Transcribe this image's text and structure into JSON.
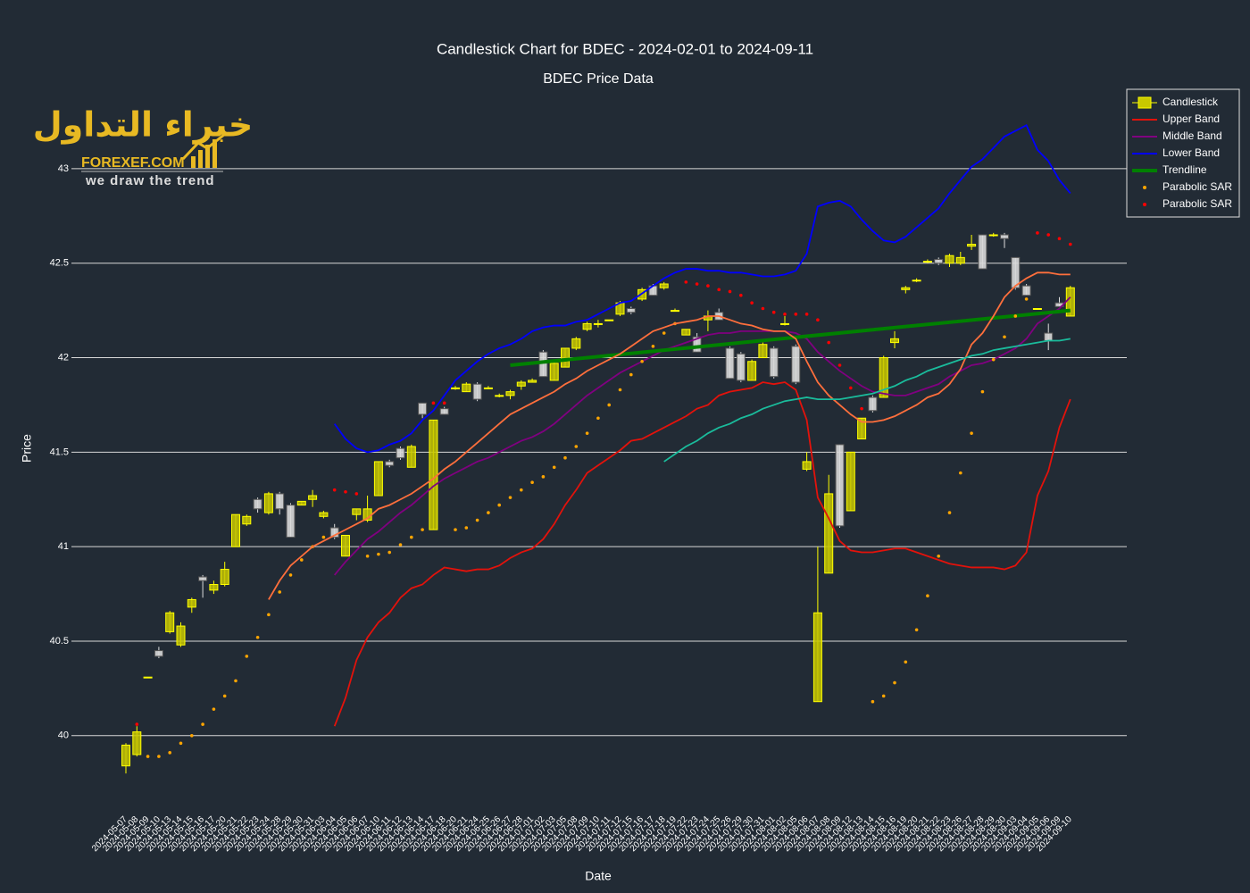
{
  "chart_data": {
    "type": "candlestick",
    "title": "Candlestick Chart for BDEC - 2024-02-01 to 2024-09-11",
    "subtitle": "BDEC Price Data",
    "x_label": "Date",
    "y_label": "Price",
    "candle_name": "Candlestick",
    "increasing_color": "#ffff00",
    "decreasing_color": "#ffffff",
    "ylim": [
      39.64,
      43.42
    ],
    "yticks": [
      40,
      40.5,
      41,
      41.5,
      42,
      42.5,
      43
    ],
    "grid": true,
    "legend": "top-right",
    "categories": [
      "2024-05-07",
      "2024-05-08",
      "2024-05-09",
      "2024-05-10",
      "2024-05-13",
      "2024-05-14",
      "2024-05-15",
      "2024-05-16",
      "2024-05-17",
      "2024-05-20",
      "2024-05-21",
      "2024-05-22",
      "2024-05-23",
      "2024-05-24",
      "2024-05-28",
      "2024-05-29",
      "2024-05-30",
      "2024-05-31",
      "2024-06-03",
      "2024-06-04",
      "2024-06-05",
      "2024-06-06",
      "2024-06-07",
      "2024-06-10",
      "2024-06-11",
      "2024-06-12",
      "2024-06-13",
      "2024-06-14",
      "2024-06-17",
      "2024-06-18",
      "2024-06-20",
      "2024-06-21",
      "2024-06-24",
      "2024-06-25",
      "2024-06-26",
      "2024-06-27",
      "2024-06-28",
      "2024-07-01",
      "2024-07-02",
      "2024-07-03",
      "2024-07-05",
      "2024-07-08",
      "2024-07-09",
      "2024-07-10",
      "2024-07-11",
      "2024-07-12",
      "2024-07-15",
      "2024-07-16",
      "2024-07-17",
      "2024-07-18",
      "2024-07-19",
      "2024-07-22",
      "2024-07-23",
      "2024-07-24",
      "2024-07-25",
      "2024-07-26",
      "2024-07-29",
      "2024-07-30",
      "2024-07-31",
      "2024-08-01",
      "2024-08-02",
      "2024-08-05",
      "2024-08-06",
      "2024-08-07",
      "2024-08-08",
      "2024-08-09",
      "2024-08-12",
      "2024-08-13",
      "2024-08-14",
      "2024-08-15",
      "2024-08-16",
      "2024-08-19",
      "2024-08-20",
      "2024-08-21",
      "2024-08-22",
      "2024-08-23",
      "2024-08-26",
      "2024-08-27",
      "2024-08-28",
      "2024-08-29",
      "2024-08-30",
      "2024-09-03",
      "2024-09-04",
      "2024-09-05",
      "2024-09-06",
      "2024-09-09",
      "2024-09-10"
    ],
    "open": [
      39.84,
      39.9,
      40.31,
      40.45,
      40.55,
      40.48,
      40.68,
      40.84,
      40.77,
      40.8,
      41.0,
      41.12,
      41.25,
      41.18,
      41.28,
      41.22,
      41.22,
      41.25,
      41.16,
      41.1,
      40.95,
      41.17,
      41.14,
      41.27,
      41.45,
      41.52,
      41.42,
      41.76,
      41.09,
      41.73,
      41.84,
      41.82,
      41.86,
      41.84,
      41.8,
      41.8,
      41.85,
      41.87,
      42.03,
      41.88,
      41.95,
      42.05,
      42.15,
      42.18,
      42.2,
      42.23,
      42.26,
      42.31,
      42.38,
      42.37,
      42.25,
      42.12,
      42.11,
      42.2,
      42.24,
      42.05,
      42.02,
      41.88,
      42.0,
      42.05,
      42.18,
      42.06,
      41.41,
      40.18,
      40.86,
      41.54,
      41.19,
      41.57,
      41.79,
      41.79,
      42.08,
      42.36,
      42.41,
      42.51,
      42.52,
      42.5,
      42.5,
      42.59,
      42.65,
      42.65,
      42.65,
      42.53,
      42.38,
      42.26,
      42.13,
      42.29,
      42.22
    ],
    "high": [
      39.96,
      40.05,
      40.31,
      40.47,
      40.66,
      40.6,
      40.73,
      40.85,
      40.82,
      40.92,
      41.17,
      41.17,
      41.26,
      41.29,
      41.29,
      41.23,
      41.24,
      41.3,
      41.19,
      41.12,
      41.06,
      41.2,
      41.27,
      41.45,
      41.46,
      41.53,
      41.54,
      41.76,
      41.67,
      41.74,
      41.85,
      41.87,
      41.87,
      41.85,
      41.81,
      41.83,
      41.88,
      41.89,
      42.04,
      41.98,
      42.05,
      42.11,
      42.19,
      42.2,
      42.2,
      42.3,
      42.27,
      42.37,
      42.39,
      42.4,
      42.26,
      42.15,
      42.13,
      42.25,
      42.26,
      42.06,
      42.03,
      41.99,
      42.08,
      42.06,
      42.22,
      42.07,
      41.5,
      41.0,
      41.38,
      41.54,
      41.5,
      41.68,
      41.8,
      42.01,
      42.14,
      42.38,
      42.42,
      42.52,
      42.53,
      42.55,
      42.56,
      42.65,
      42.65,
      42.66,
      42.66,
      42.53,
      42.39,
      42.26,
      42.18,
      42.32,
      42.38
    ],
    "low": [
      39.8,
      39.89,
      40.31,
      40.41,
      40.54,
      40.47,
      40.65,
      40.73,
      40.75,
      40.79,
      41.0,
      41.11,
      41.18,
      41.17,
      41.17,
      41.05,
      41.22,
      41.21,
      41.15,
      41.04,
      40.95,
      41.14,
      41.13,
      41.27,
      41.42,
      41.46,
      41.42,
      41.68,
      41.09,
      41.7,
      41.83,
      41.82,
      41.77,
      41.84,
      41.79,
      41.78,
      41.83,
      41.87,
      41.9,
      41.88,
      41.95,
      42.04,
      42.14,
      42.16,
      42.2,
      42.22,
      42.23,
      42.3,
      42.33,
      42.36,
      42.25,
      42.12,
      42.03,
      42.14,
      42.2,
      41.89,
      41.87,
      41.88,
      42.0,
      41.89,
      42.17,
      41.86,
      41.4,
      40.18,
      40.86,
      41.1,
      41.19,
      41.57,
      41.71,
      41.79,
      42.05,
      42.34,
      42.4,
      42.5,
      42.49,
      42.48,
      42.49,
      42.57,
      42.47,
      42.64,
      42.58,
      42.36,
      42.33,
      42.26,
      42.04,
      42.27,
      42.22
    ],
    "close": [
      39.95,
      40.02,
      40.31,
      40.42,
      40.65,
      40.58,
      40.72,
      40.82,
      40.8,
      40.88,
      41.17,
      41.16,
      41.2,
      41.28,
      41.2,
      41.05,
      41.24,
      41.27,
      41.18,
      41.05,
      41.06,
      41.2,
      41.2,
      41.45,
      41.43,
      41.47,
      41.53,
      41.7,
      41.67,
      41.7,
      41.84,
      41.86,
      41.78,
      41.84,
      41.8,
      41.82,
      41.87,
      41.88,
      41.9,
      41.97,
      42.05,
      42.1,
      42.18,
      42.18,
      42.2,
      42.29,
      42.24,
      42.36,
      42.33,
      42.39,
      42.25,
      42.15,
      42.03,
      42.22,
      42.2,
      41.89,
      41.88,
      41.98,
      42.07,
      41.9,
      42.18,
      41.87,
      41.45,
      40.65,
      41.28,
      41.11,
      41.5,
      41.68,
      41.72,
      42.0,
      42.1,
      42.37,
      42.41,
      42.51,
      42.5,
      42.54,
      42.53,
      42.6,
      42.47,
      42.65,
      42.63,
      42.37,
      42.33,
      42.26,
      42.09,
      42.27,
      42.37
    ],
    "series": [
      {
        "name": "Upper Band",
        "color": "#e3120b",
        "type": "line",
        "values": [
          null,
          null,
          null,
          null,
          null,
          null,
          null,
          null,
          null,
          null,
          null,
          null,
          null,
          null,
          null,
          null,
          null,
          null,
          null,
          40.05,
          40.2,
          40.4,
          40.52,
          40.6,
          40.65,
          40.73,
          40.78,
          40.8,
          40.85,
          40.89,
          40.88,
          40.87,
          40.88,
          40.88,
          40.9,
          40.94,
          40.97,
          40.99,
          41.04,
          41.12,
          41.22,
          41.3,
          41.39,
          41.43,
          41.47,
          41.51,
          41.56,
          41.57,
          41.6,
          41.63,
          41.66,
          41.69,
          41.73,
          41.75,
          41.8,
          41.82,
          41.83,
          41.84,
          41.87,
          41.86,
          41.87,
          41.83,
          41.67,
          41.26,
          41.15,
          41.03,
          40.98,
          40.97,
          40.97,
          40.98,
          40.99,
          40.99,
          40.97,
          40.95,
          40.93,
          40.91,
          40.9,
          40.89,
          40.89,
          40.89,
          40.88,
          40.9,
          40.97,
          41.27,
          41.4,
          41.63,
          41.78
        ]
      },
      {
        "name": "Middle Band",
        "color": "#800080",
        "type": "line",
        "values": [
          null,
          null,
          null,
          null,
          null,
          null,
          null,
          null,
          null,
          null,
          null,
          null,
          null,
          null,
          null,
          null,
          null,
          null,
          null,
          40.85,
          40.92,
          40.98,
          41.04,
          41.08,
          41.13,
          41.18,
          41.22,
          41.27,
          41.32,
          41.36,
          41.39,
          41.42,
          41.45,
          41.47,
          41.5,
          41.53,
          41.56,
          41.58,
          41.61,
          41.65,
          41.7,
          41.75,
          41.8,
          41.84,
          41.88,
          41.92,
          41.95,
          41.98,
          42.01,
          42.04,
          42.06,
          42.08,
          42.1,
          42.12,
          42.13,
          42.13,
          42.14,
          42.14,
          42.14,
          42.14,
          42.14,
          42.13,
          42.1,
          42.03,
          41.98,
          41.93,
          41.89,
          41.85,
          41.82,
          41.81,
          41.8,
          41.8,
          41.82,
          41.84,
          41.86,
          41.9,
          41.93,
          41.96,
          41.97,
          41.99,
          42.02,
          42.05,
          42.1,
          42.18,
          42.22,
          42.26,
          42.32
        ]
      },
      {
        "name": "Lower Band",
        "color": "#0000ff",
        "type": "line",
        "values": [
          null,
          null,
          null,
          null,
          null,
          null,
          null,
          null,
          null,
          null,
          null,
          null,
          null,
          null,
          null,
          null,
          null,
          null,
          null,
          41.65,
          41.57,
          41.52,
          41.5,
          41.51,
          41.54,
          41.56,
          41.6,
          41.67,
          41.72,
          41.8,
          41.88,
          41.93,
          41.98,
          42.02,
          42.05,
          42.07,
          42.1,
          42.14,
          42.16,
          42.17,
          42.17,
          42.19,
          42.2,
          42.23,
          42.26,
          42.29,
          42.3,
          42.34,
          42.38,
          42.42,
          42.45,
          42.47,
          42.47,
          42.46,
          42.46,
          42.45,
          42.45,
          42.44,
          42.43,
          42.43,
          42.44,
          42.46,
          42.55,
          42.8,
          42.82,
          42.83,
          42.8,
          42.73,
          42.67,
          42.62,
          42.61,
          42.64,
          42.69,
          42.74,
          42.79,
          42.87,
          42.94,
          43.01,
          43.05,
          43.11,
          43.17,
          43.2,
          43.23,
          43.1,
          43.04,
          42.94,
          42.87
        ]
      },
      {
        "name": "Trendline",
        "color": "#008000",
        "type": "line",
        "x": [
          "2024-06-27",
          "2024-09-10"
        ],
        "values": [
          41.96,
          42.25
        ]
      },
      {
        "name": "Parabolic SAR",
        "color": "#ffa500",
        "type": "scatter",
        "values": [
          null,
          null,
          39.89,
          39.89,
          39.91,
          39.96,
          40.0,
          40.06,
          40.14,
          40.21,
          40.29,
          40.42,
          40.52,
          40.64,
          40.76,
          40.85,
          40.93,
          41.0,
          41.05,
          null,
          null,
          null,
          40.95,
          40.96,
          40.97,
          41.01,
          41.05,
          41.09,
          null,
          null,
          41.09,
          41.1,
          41.14,
          41.18,
          41.22,
          41.26,
          41.3,
          41.34,
          41.37,
          41.42,
          41.47,
          41.53,
          41.6,
          41.68,
          41.75,
          41.83,
          41.91,
          41.98,
          42.06,
          42.13,
          42.18,
          null,
          null,
          null,
          null,
          null,
          null,
          null,
          null,
          null,
          null,
          null,
          null,
          null,
          null,
          null,
          null,
          null,
          40.18,
          40.21,
          40.28,
          40.39,
          40.56,
          40.74,
          40.95,
          41.18,
          41.39,
          41.6,
          41.82,
          41.99,
          42.11,
          42.22,
          42.31,
          null,
          null,
          null,
          null
        ]
      },
      {
        "name": "Parabolic SAR",
        "color": "#ff0000",
        "type": "scatter",
        "values": [
          null,
          40.06,
          null,
          null,
          null,
          null,
          null,
          null,
          null,
          null,
          null,
          null,
          null,
          null,
          null,
          null,
          null,
          null,
          null,
          41.3,
          41.29,
          41.28,
          null,
          null,
          null,
          null,
          null,
          null,
          41.76,
          41.76,
          null,
          null,
          null,
          null,
          null,
          null,
          null,
          null,
          null,
          null,
          null,
          null,
          null,
          null,
          null,
          null,
          null,
          null,
          null,
          null,
          null,
          42.4,
          42.39,
          42.38,
          42.36,
          42.35,
          42.33,
          42.29,
          42.26,
          42.24,
          42.23,
          42.23,
          42.23,
          42.2,
          42.08,
          41.96,
          41.84,
          41.73,
          null,
          null,
          null,
          null,
          null,
          null,
          null,
          null,
          null,
          null,
          null,
          null,
          null,
          null,
          null,
          42.66,
          42.65,
          42.63,
          42.6
        ]
      },
      {
        "color": "#ff6f3c",
        "type": "line",
        "values": [
          null,
          null,
          null,
          null,
          null,
          null,
          null,
          null,
          null,
          null,
          null,
          null,
          null,
          40.72,
          40.82,
          40.9,
          40.95,
          41.0,
          41.03,
          41.06,
          41.09,
          41.12,
          41.15,
          41.2,
          41.22,
          41.25,
          41.28,
          41.32,
          41.36,
          41.41,
          41.45,
          41.5,
          41.55,
          41.6,
          41.65,
          41.7,
          41.73,
          41.76,
          41.79,
          41.82,
          41.86,
          41.89,
          41.93,
          41.96,
          41.99,
          42.02,
          42.06,
          42.1,
          42.14,
          42.16,
          42.18,
          42.19,
          42.2,
          42.22,
          42.22,
          42.2,
          42.18,
          42.17,
          42.15,
          42.14,
          42.14,
          42.1,
          41.98,
          41.87,
          41.8,
          41.75,
          41.7,
          41.66,
          41.66,
          41.67,
          41.69,
          41.72,
          41.75,
          41.79,
          41.81,
          41.86,
          41.94,
          42.07,
          42.13,
          42.22,
          42.32,
          42.38,
          42.42,
          42.45,
          42.45,
          42.44,
          42.44
        ]
      },
      {
        "color": "#1abc9c",
        "type": "line",
        "values": [
          null,
          null,
          null,
          null,
          null,
          null,
          null,
          null,
          null,
          null,
          null,
          null,
          null,
          null,
          null,
          null,
          null,
          null,
          null,
          null,
          null,
          null,
          null,
          null,
          null,
          null,
          null,
          null,
          null,
          null,
          null,
          null,
          null,
          null,
          null,
          null,
          null,
          null,
          null,
          null,
          null,
          null,
          null,
          null,
          null,
          null,
          null,
          null,
          null,
          41.45,
          41.49,
          41.53,
          41.56,
          41.6,
          41.63,
          41.65,
          41.68,
          41.7,
          41.73,
          41.75,
          41.77,
          41.78,
          41.79,
          41.78,
          41.78,
          41.78,
          41.79,
          41.8,
          41.81,
          41.83,
          41.85,
          41.88,
          41.9,
          41.93,
          41.95,
          41.97,
          41.99,
          42.01,
          42.02,
          42.04,
          42.05,
          42.06,
          42.07,
          42.08,
          42.09,
          42.09,
          42.1
        ]
      }
    ]
  },
  "logo": {
    "arabic": "خبراء التداول",
    "name": "FOREXEF.COM",
    "tagline": "we draw the trend"
  }
}
